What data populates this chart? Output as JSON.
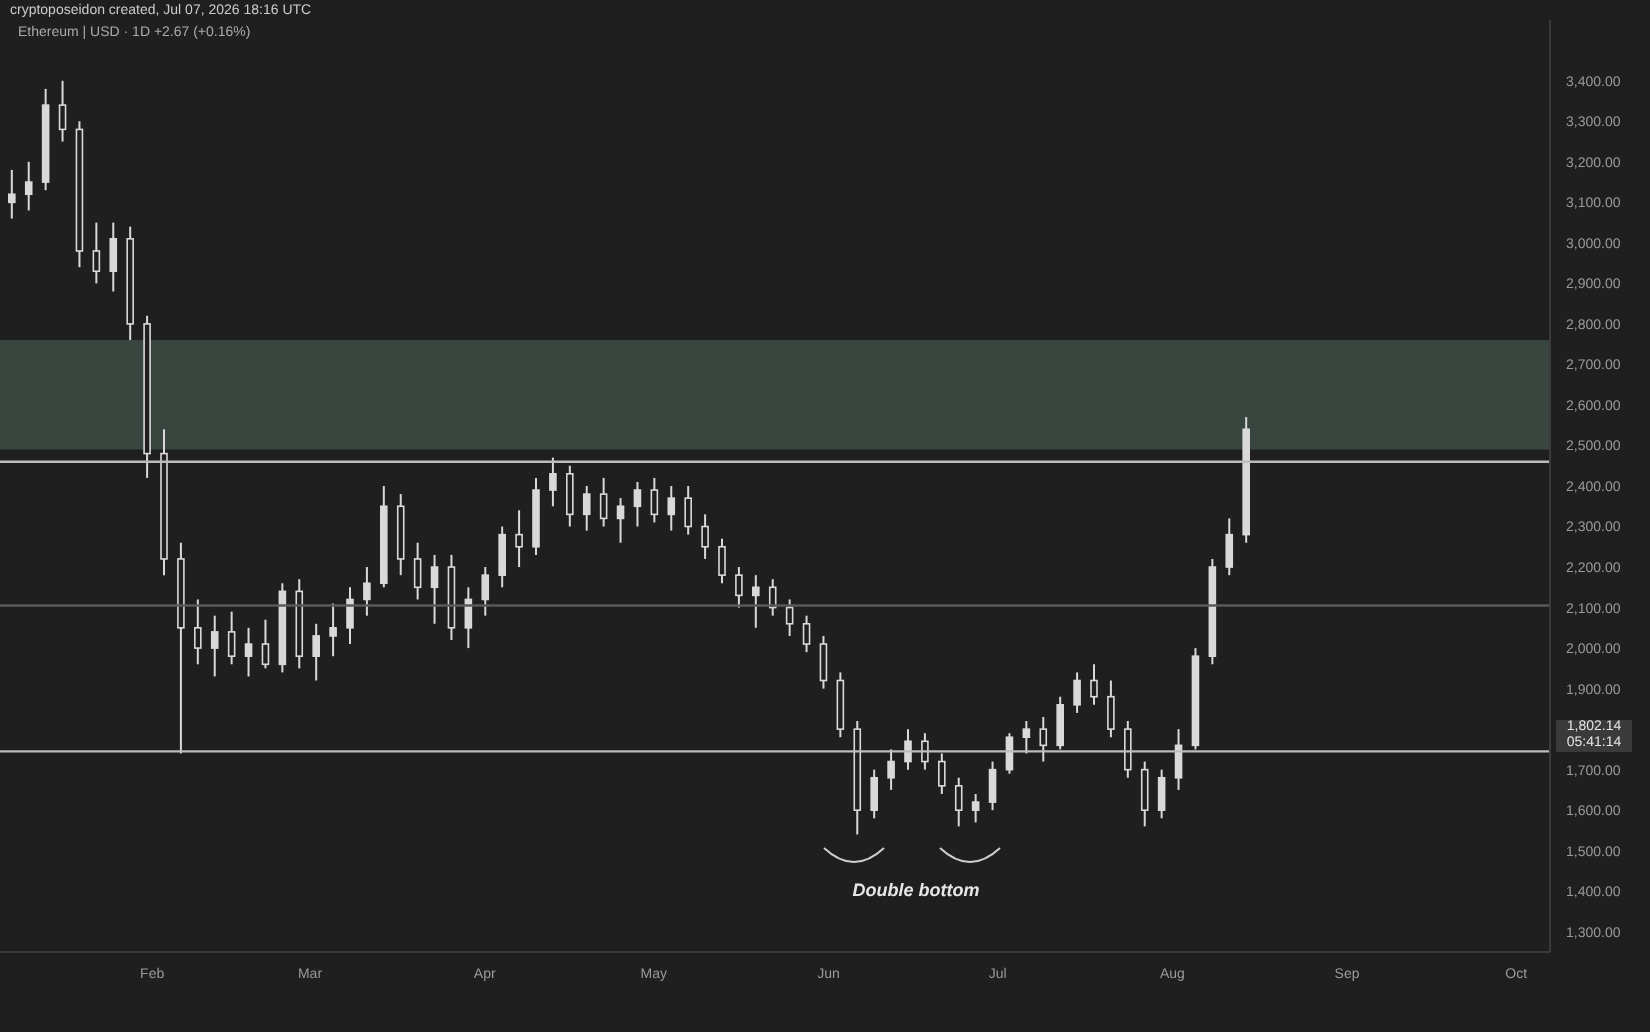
{
  "chart_data": {
    "type": "candlestick",
    "title": "Ethereum | USD · 1D +2.67 (+0.16%)",
    "annotations": [
      "cryptoposeidon created, Jul 07, 2026 18:16 UTC",
      "Double bottom",
      "1,802.14",
      "05:41:14"
    ],
    "color": "#d9d9d9",
    "x": [
      "--01-07",
      "--01-10",
      "--01-13",
      "--01-16",
      "--01-19",
      "--01-22",
      "--01-25",
      "--01-28",
      "--01-31",
      "--02-03",
      "--02-06",
      "--02-09",
      "--02-12",
      "--02-15",
      "--02-18",
      "--02-21",
      "--02-24",
      "--02-27",
      "--03-02",
      "--03-05",
      "--03-08",
      "--03-11",
      "--03-14",
      "--03-17",
      "--03-20",
      "--03-23",
      "--03-26",
      "--03-29",
      "--04-01",
      "--04-04",
      "--04-07",
      "--04-10",
      "--04-13",
      "--04-16",
      "--04-19",
      "--04-22",
      "--04-25",
      "--04-28",
      "--05-01",
      "--05-04",
      "--05-07",
      "--05-10",
      "--05-13",
      "--05-16",
      "--05-19",
      "--05-22",
      "--05-25",
      "--05-28",
      "--05-31",
      "--06-03",
      "--06-06",
      "--06-09",
      "--06-12",
      "--06-15",
      "--06-18",
      "--06-21",
      "--06-24",
      "--06-27",
      "--06-30",
      "--07-03",
      "--07-06",
      "--07-09",
      "--07-12",
      "--07-15",
      "--07-18",
      "--07-21",
      "--07-24",
      "--07-27",
      "--07-30",
      "--08-02",
      "--08-05",
      "--08-08",
      "--08-11",
      "--08-14"
    ],
    "ohlc": [
      [
        3100,
        3180,
        3060,
        3120
      ],
      [
        3120,
        3200,
        3080,
        3150
      ],
      [
        3150,
        3380,
        3130,
        3340
      ],
      [
        3340,
        3400,
        3250,
        3280
      ],
      [
        3280,
        3300,
        2940,
        2980
      ],
      [
        2980,
        3050,
        2900,
        2930
      ],
      [
        2930,
        3050,
        2880,
        3010
      ],
      [
        3010,
        3040,
        2760,
        2800
      ],
      [
        2800,
        2820,
        2420,
        2480
      ],
      [
        2480,
        2540,
        2180,
        2220
      ],
      [
        2220,
        2260,
        1740,
        2050
      ],
      [
        2050,
        2120,
        1960,
        2000
      ],
      [
        2000,
        2080,
        1930,
        2040
      ],
      [
        2040,
        2090,
        1960,
        1980
      ],
      [
        1980,
        2050,
        1930,
        2010
      ],
      [
        2010,
        2070,
        1950,
        1960
      ],
      [
        1960,
        2160,
        1940,
        2140
      ],
      [
        2140,
        2170,
        1950,
        1980
      ],
      [
        1980,
        2060,
        1920,
        2030
      ],
      [
        2030,
        2110,
        1980,
        2050
      ],
      [
        2050,
        2150,
        2010,
        2120
      ],
      [
        2120,
        2200,
        2080,
        2160
      ],
      [
        2160,
        2400,
        2150,
        2350
      ],
      [
        2350,
        2380,
        2180,
        2220
      ],
      [
        2220,
        2260,
        2120,
        2150
      ],
      [
        2150,
        2230,
        2060,
        2200
      ],
      [
        2200,
        2230,
        2020,
        2050
      ],
      [
        2050,
        2150,
        2000,
        2120
      ],
      [
        2120,
        2200,
        2080,
        2180
      ],
      [
        2180,
        2300,
        2150,
        2280
      ],
      [
        2280,
        2340,
        2200,
        2250
      ],
      [
        2250,
        2420,
        2230,
        2390
      ],
      [
        2390,
        2470,
        2350,
        2430
      ],
      [
        2430,
        2450,
        2300,
        2330
      ],
      [
        2330,
        2400,
        2290,
        2380
      ],
      [
        2380,
        2420,
        2300,
        2320
      ],
      [
        2320,
        2370,
        2260,
        2350
      ],
      [
        2350,
        2410,
        2300,
        2390
      ],
      [
        2390,
        2420,
        2310,
        2330
      ],
      [
        2330,
        2400,
        2290,
        2370
      ],
      [
        2370,
        2400,
        2280,
        2300
      ],
      [
        2300,
        2330,
        2220,
        2250
      ],
      [
        2250,
        2270,
        2160,
        2180
      ],
      [
        2180,
        2200,
        2100,
        2130
      ],
      [
        2130,
        2180,
        2050,
        2150
      ],
      [
        2150,
        2170,
        2080,
        2100
      ],
      [
        2100,
        2120,
        2030,
        2060
      ],
      [
        2060,
        2080,
        1990,
        2010
      ],
      [
        2010,
        2030,
        1900,
        1920
      ],
      [
        1920,
        1940,
        1780,
        1800
      ],
      [
        1800,
        1820,
        1540,
        1600
      ],
      [
        1600,
        1700,
        1580,
        1680
      ],
      [
        1680,
        1750,
        1650,
        1720
      ],
      [
        1720,
        1800,
        1700,
        1770
      ],
      [
        1770,
        1790,
        1700,
        1720
      ],
      [
        1720,
        1740,
        1640,
        1660
      ],
      [
        1660,
        1680,
        1560,
        1600
      ],
      [
        1600,
        1640,
        1570,
        1620
      ],
      [
        1620,
        1720,
        1600,
        1700
      ],
      [
        1700,
        1790,
        1690,
        1780
      ],
      [
        1780,
        1820,
        1740,
        1800
      ],
      [
        1800,
        1830,
        1720,
        1760
      ],
      [
        1760,
        1880,
        1750,
        1860
      ],
      [
        1860,
        1940,
        1840,
        1920
      ],
      [
        1920,
        1960,
        1860,
        1880
      ],
      [
        1880,
        1920,
        1780,
        1800
      ],
      [
        1800,
        1820,
        1680,
        1700
      ],
      [
        1700,
        1720,
        1560,
        1600
      ],
      [
        1600,
        1700,
        1580,
        1680
      ],
      [
        1680,
        1800,
        1650,
        1760
      ],
      [
        1760,
        2000,
        1750,
        1980
      ],
      [
        1980,
        2220,
        1960,
        2200
      ],
      [
        2200,
        2320,
        2180,
        2280
      ],
      [
        2280,
        2570,
        2260,
        2540
      ]
    ],
    "xlim": [
      "--01-05",
      "--10-07"
    ],
    "xticks": [
      {
        "value": "--02-01",
        "label": "Feb"
      },
      {
        "value": "--03-01",
        "label": "Mar"
      },
      {
        "value": "--04-01",
        "label": "Apr"
      },
      {
        "value": "--05-01",
        "label": "May"
      },
      {
        "value": "--06-01",
        "label": "Jun"
      },
      {
        "value": "--07-01",
        "label": "Jul"
      },
      {
        "value": "--08-01",
        "label": "Aug"
      },
      {
        "value": "--09-01",
        "label": "Sep"
      },
      {
        "value": "--10-01",
        "label": "Oct"
      }
    ],
    "ylim": [
      1250,
      3550
    ],
    "yticks": [
      {
        "value": 1300,
        "label": "1,300.00"
      },
      {
        "value": 1400,
        "label": "1,400.00"
      },
      {
        "value": 1500,
        "label": "1,500.00"
      },
      {
        "value": 1600,
        "label": "1,600.00"
      },
      {
        "value": 1700,
        "label": "1,700.00"
      },
      {
        "value": 1900,
        "label": "1,900.00"
      },
      {
        "value": 2000,
        "label": "2,000.00"
      },
      {
        "value": 2100,
        "label": "2,100.00"
      },
      {
        "value": 2200,
        "label": "2,200.00"
      },
      {
        "value": 2300,
        "label": "2,300.00"
      },
      {
        "value": 2400,
        "label": "2,400.00"
      },
      {
        "value": 2500,
        "label": "2,500.00"
      },
      {
        "value": 2600,
        "label": "2,600.00"
      },
      {
        "value": 2700,
        "label": "2,700.00"
      },
      {
        "value": 2800,
        "label": "2,800.00"
      },
      {
        "value": 2900,
        "label": "2,900.00"
      },
      {
        "value": 3000,
        "label": "3,000.00"
      },
      {
        "value": 3100,
        "label": "3,100.00"
      },
      {
        "value": 3200,
        "label": "3,200.00"
      },
      {
        "value": 3300,
        "label": "3,300.00"
      },
      {
        "value": 3400,
        "label": "3,400.00"
      }
    ],
    "ref_lines": [
      {
        "axis": "y",
        "value": 2460,
        "color": "#bdbdbd"
      },
      {
        "axis": "y",
        "value": 2105,
        "color": "#5a5a5a"
      },
      {
        "axis": "y",
        "value": 1745,
        "color": "#bdbdbd"
      }
    ],
    "bands": [
      {
        "axis": "y",
        "from": 2490,
        "to": 2760,
        "color": "#3b4a42"
      }
    ]
  }
}
